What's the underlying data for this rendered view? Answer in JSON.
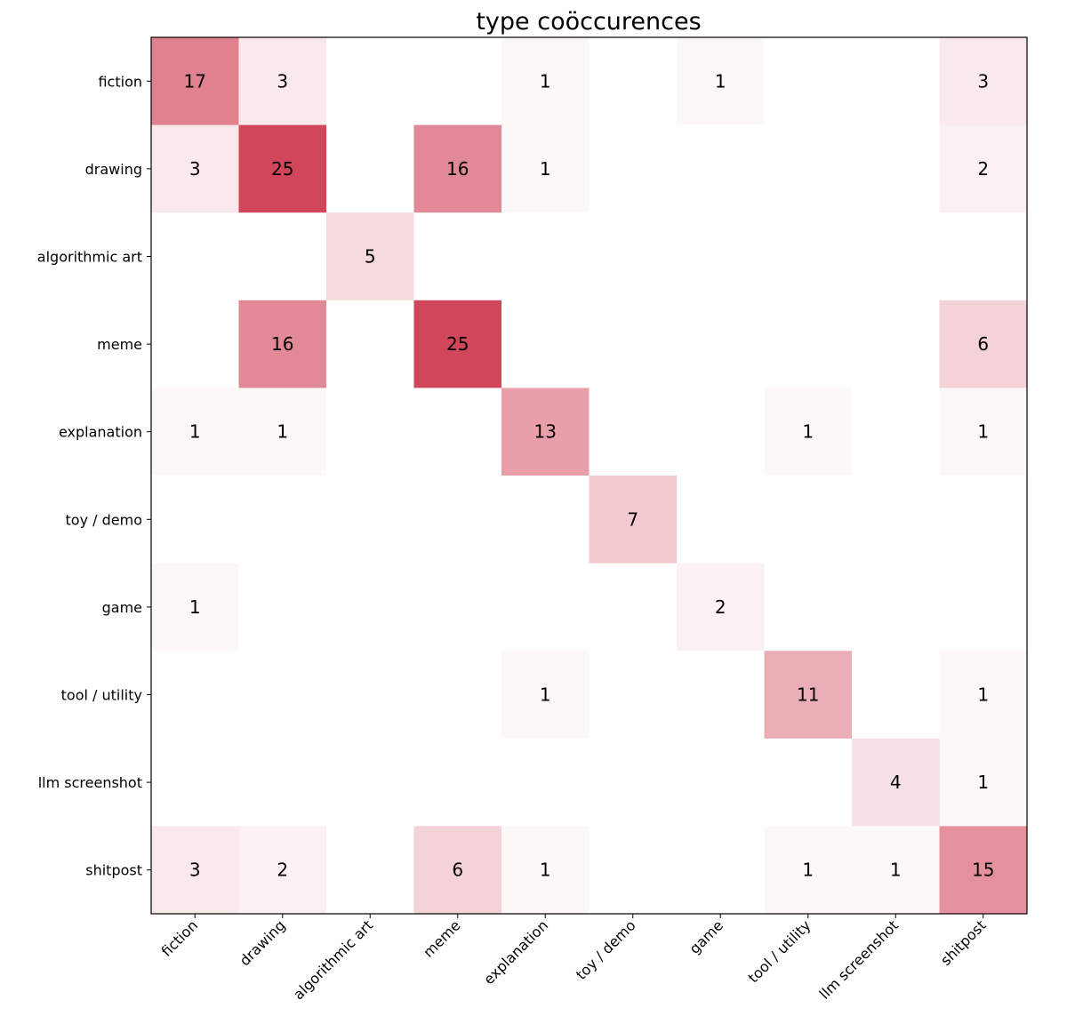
{
  "chart_data": {
    "type": "heatmap",
    "title": "type coöccurences",
    "xlabel": "",
    "ylabel": "",
    "labels": [
      "fiction",
      "drawing",
      "algorithmic art",
      "meme",
      "explanation",
      "toy / demo",
      "game",
      "tool / utility",
      "llm screenshot",
      "shitpost"
    ],
    "values": [
      [
        17,
        3,
        0,
        0,
        1,
        0,
        1,
        0,
        0,
        3
      ],
      [
        3,
        25,
        0,
        16,
        1,
        0,
        0,
        0,
        0,
        2
      ],
      [
        0,
        0,
        5,
        0,
        0,
        0,
        0,
        0,
        0,
        0
      ],
      [
        0,
        16,
        0,
        25,
        0,
        0,
        0,
        0,
        0,
        6
      ],
      [
        1,
        1,
        0,
        0,
        13,
        0,
        0,
        1,
        0,
        1
      ],
      [
        0,
        0,
        0,
        0,
        0,
        7,
        0,
        0,
        0,
        0
      ],
      [
        1,
        0,
        0,
        0,
        0,
        0,
        2,
        0,
        0,
        0
      ],
      [
        0,
        0,
        0,
        0,
        1,
        0,
        0,
        11,
        0,
        1
      ],
      [
        0,
        0,
        0,
        0,
        0,
        0,
        0,
        0,
        4,
        1
      ],
      [
        3,
        2,
        0,
        6,
        1,
        0,
        0,
        1,
        1,
        15
      ]
    ],
    "vmax": 25,
    "max_color": "#d2465c",
    "min_color": "#ffffff",
    "grid": false
  }
}
